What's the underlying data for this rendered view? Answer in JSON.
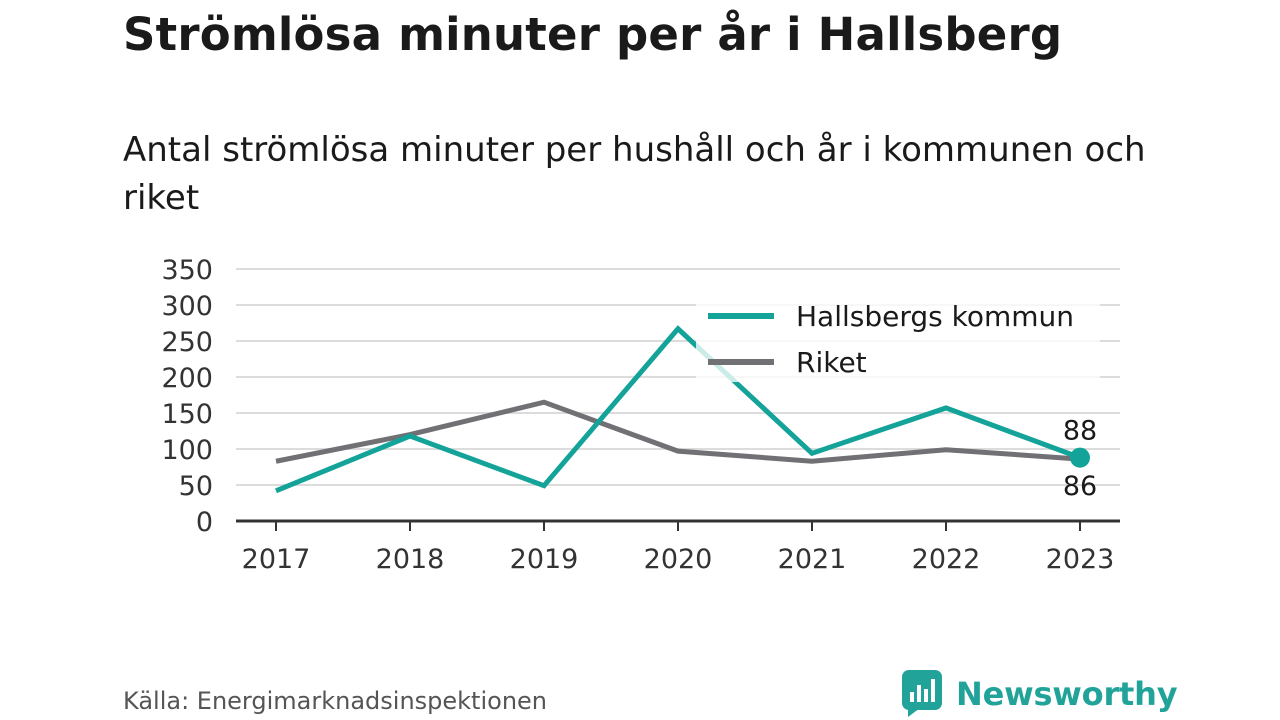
{
  "title": "Strömlösa minuter per år i Hallsberg",
  "subtitle": "Antal strömlösa minuter per hushåll och år i kommunen och riket",
  "source": "Källa: Energimarknadsinspektionen",
  "brand": {
    "name": "Newsworthy",
    "icon": "newsworthy-logo-icon",
    "color": "#21a39a"
  },
  "chart_data": {
    "type": "line",
    "categories": [
      "2017",
      "2018",
      "2019",
      "2020",
      "2021",
      "2022",
      "2023"
    ],
    "series": [
      {
        "name": "Hallsbergs kommun",
        "color": "#14a399",
        "values": [
          42,
          118,
          49,
          267,
          94,
          157,
          88
        ]
      },
      {
        "name": "Riket",
        "color": "#717074",
        "values": [
          83,
          120,
          165,
          97,
          83,
          99,
          86
        ]
      }
    ],
    "annotations": [
      {
        "series": "Hallsbergs kommun",
        "category": "2023",
        "label": "88",
        "position": "above"
      },
      {
        "series": "Riket",
        "category": "2023",
        "label": "86",
        "position": "below"
      }
    ],
    "y_ticks": [
      "0",
      "50",
      "100",
      "150",
      "200",
      "250",
      "300",
      "350"
    ],
    "ylim": [
      0,
      350
    ],
    "xlabel": "",
    "ylabel": "",
    "grid": true,
    "legend_position": "top-right"
  }
}
